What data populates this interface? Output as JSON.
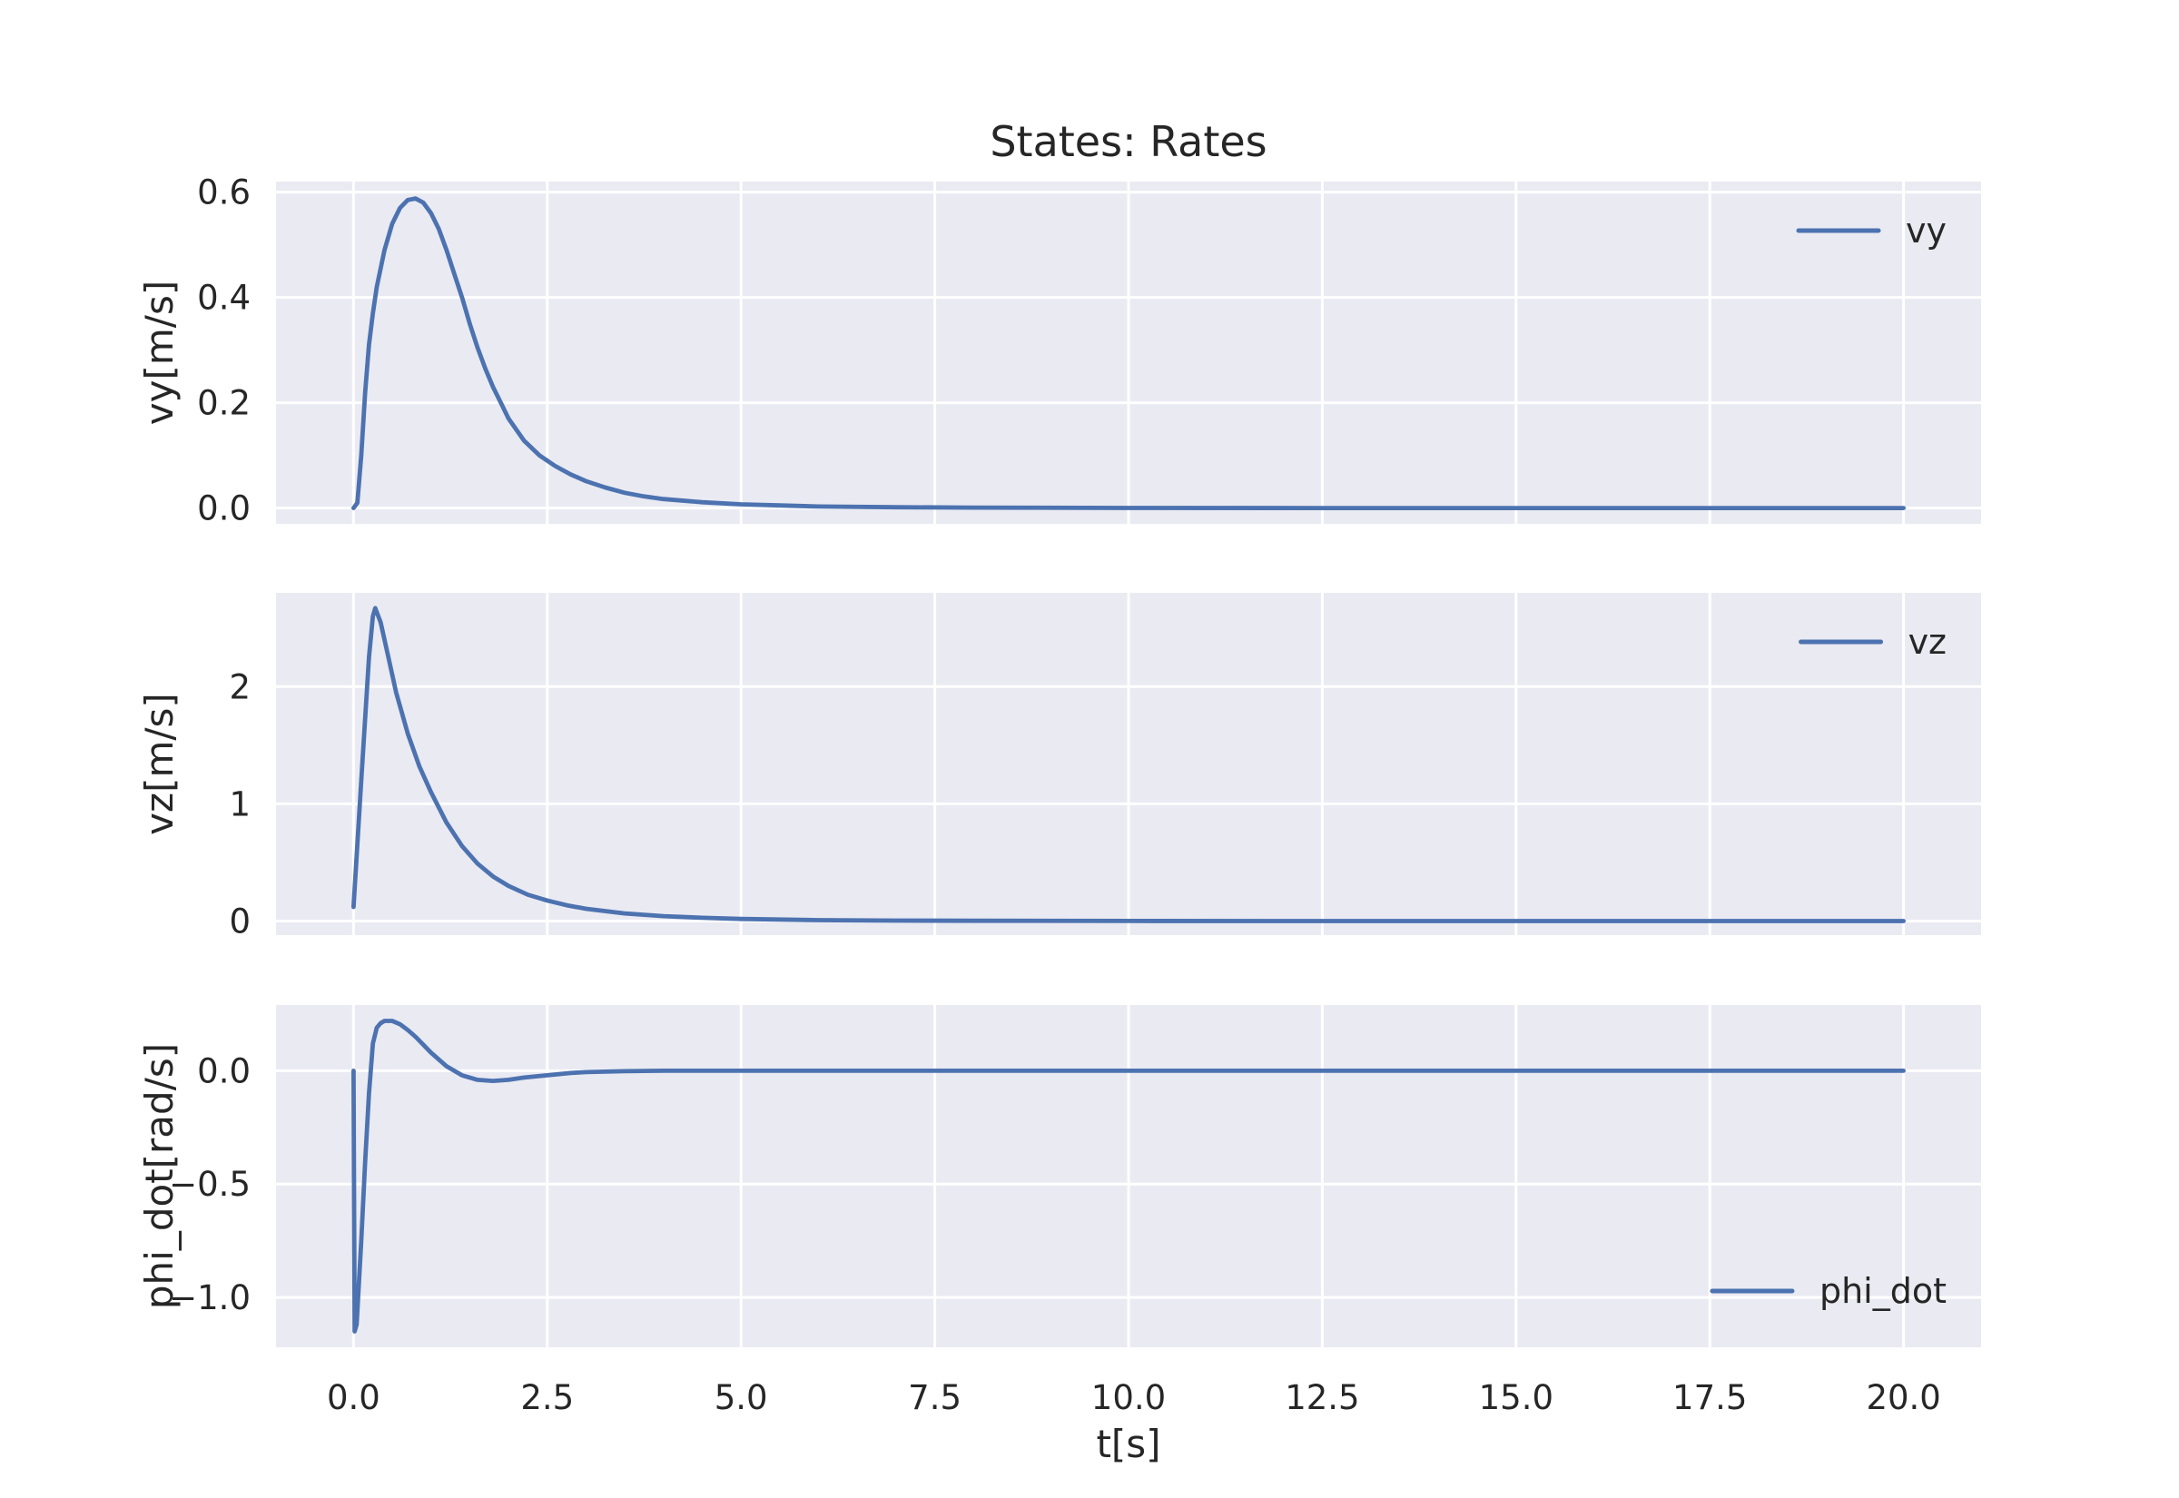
{
  "chart_data": {
    "type": "line",
    "title": "States: Rates",
    "xlabel": "t[s]",
    "xlim": [
      -1.0,
      21.0
    ],
    "xticks": [
      0.0,
      2.5,
      5.0,
      7.5,
      10.0,
      12.5,
      15.0,
      17.5,
      20.0
    ],
    "xtick_labels": [
      "0.0",
      "2.5",
      "5.0",
      "7.5",
      "10.0",
      "12.5",
      "15.0",
      "17.5",
      "20.0"
    ],
    "grid": true,
    "panels": [
      {
        "ylabel": "vy[m/s]",
        "ylim": [
          -0.03,
          0.62
        ],
        "yticks": [
          0.0,
          0.2,
          0.4,
          0.6
        ],
        "ytick_labels": [
          "0.0",
          "0.2",
          "0.4",
          "0.6"
        ],
        "legend": "top-right",
        "color": "#4c72b0",
        "series": [
          {
            "name": "vy",
            "x": [
              0.0,
              0.05,
              0.1,
              0.15,
              0.2,
              0.25,
              0.3,
              0.4,
              0.5,
              0.6,
              0.7,
              0.8,
              0.9,
              1.0,
              1.1,
              1.2,
              1.3,
              1.4,
              1.5,
              1.6,
              1.7,
              1.8,
              1.9,
              2.0,
              2.2,
              2.4,
              2.6,
              2.8,
              3.0,
              3.25,
              3.5,
              3.75,
              4.0,
              4.5,
              5.0,
              5.5,
              6.0,
              7.0,
              8.0,
              10.0,
              12.5,
              15.0,
              17.5,
              20.0
            ],
            "y": [
              0.0,
              0.01,
              0.1,
              0.22,
              0.31,
              0.37,
              0.42,
              0.49,
              0.54,
              0.57,
              0.585,
              0.588,
              0.58,
              0.56,
              0.53,
              0.49,
              0.445,
              0.4,
              0.35,
              0.305,
              0.265,
              0.23,
              0.2,
              0.17,
              0.128,
              0.1,
              0.08,
              0.064,
              0.051,
              0.039,
              0.029,
              0.022,
              0.017,
              0.011,
              0.007,
              0.005,
              0.003,
              0.0015,
              0.0008,
              0.0002,
              0.0,
              0.0,
              0.0,
              0.0
            ]
          }
        ]
      },
      {
        "ylabel": "vz[m/s]",
        "ylim": [
          -0.12,
          2.8
        ],
        "yticks": [
          0,
          1,
          2
        ],
        "ytick_labels": [
          "0",
          "1",
          "2"
        ],
        "legend": "top-right",
        "color": "#4c72b0",
        "series": [
          {
            "name": "vz",
            "x": [
              0.0,
              0.1,
              0.2,
              0.25,
              0.28,
              0.35,
              0.45,
              0.55,
              0.7,
              0.85,
              1.0,
              1.2,
              1.4,
              1.6,
              1.8,
              2.0,
              2.25,
              2.5,
              2.75,
              3.0,
              3.5,
              4.0,
              4.5,
              5.0,
              6.0,
              7.0,
              8.0,
              10.0,
              12.5,
              15.0,
              17.5,
              20.0
            ],
            "y": [
              0.12,
              1.2,
              2.25,
              2.6,
              2.67,
              2.55,
              2.25,
              1.95,
              1.6,
              1.32,
              1.1,
              0.84,
              0.64,
              0.49,
              0.38,
              0.3,
              0.225,
              0.175,
              0.135,
              0.105,
              0.065,
              0.042,
              0.028,
              0.018,
              0.008,
              0.004,
              0.002,
              0.0005,
              0.0,
              0.0,
              0.0,
              0.0
            ]
          }
        ]
      },
      {
        "ylabel": "phi_dot[rad/s]",
        "ylim": [
          -1.22,
          0.29
        ],
        "yticks": [
          0.0,
          -0.5,
          -1.0
        ],
        "ytick_labels": [
          "0.0",
          "−0.5",
          "−1.0"
        ],
        "legend": "bottom-right",
        "color": "#4c72b0",
        "series": [
          {
            "name": "phi_dot",
            "x": [
              0.0,
              0.015,
              0.04,
              0.1,
              0.15,
              0.2,
              0.25,
              0.3,
              0.35,
              0.4,
              0.5,
              0.6,
              0.7,
              0.8,
              0.9,
              1.0,
              1.2,
              1.4,
              1.6,
              1.8,
              2.0,
              2.2,
              2.5,
              2.8,
              3.0,
              3.5,
              4.0,
              5.0,
              6.0,
              8.0,
              10.0,
              12.5,
              15.0,
              17.5,
              20.0
            ],
            "y": [
              0.0,
              -1.15,
              -1.12,
              -0.75,
              -0.4,
              -0.1,
              0.12,
              0.19,
              0.21,
              0.22,
              0.22,
              0.205,
              0.18,
              0.15,
              0.115,
              0.08,
              0.02,
              -0.02,
              -0.04,
              -0.045,
              -0.04,
              -0.03,
              -0.02,
              -0.01,
              -0.006,
              -0.002,
              0.0,
              0.0,
              0.0,
              0.0,
              0.0,
              0.0,
              0.0,
              0.0,
              0.0
            ]
          }
        ]
      }
    ]
  }
}
